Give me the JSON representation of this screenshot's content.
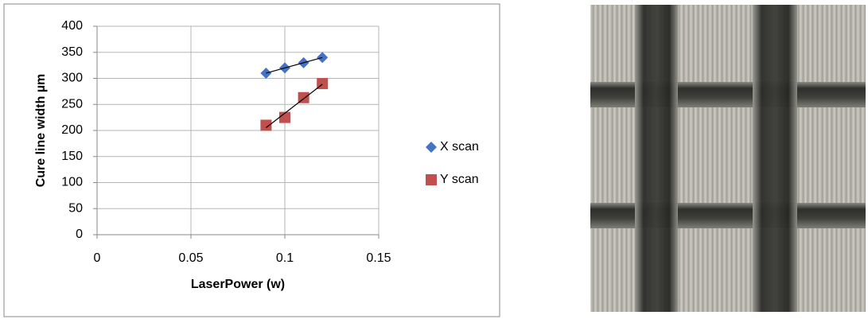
{
  "chart_data": {
    "type": "scatter",
    "x_label": "LaserPower (w)",
    "y_label": "Cure line width µm",
    "series": [
      {
        "name": "X scan",
        "color": "#4472c4",
        "marker": "diamond",
        "x": [
          0.09,
          0.1,
          0.11,
          0.12
        ],
        "values": [
          310,
          320,
          330,
          340
        ]
      },
      {
        "name": "Y scan",
        "color": "#c0504d",
        "marker": "square",
        "x": [
          0.09,
          0.1,
          0.11,
          0.12
        ],
        "values": [
          210,
          225,
          263,
          290
        ]
      }
    ],
    "trendline": "linear",
    "xlim": [
      0,
      0.15
    ],
    "xticks": [
      0,
      0.05,
      0.1,
      0.15
    ],
    "ylim": [
      0,
      400
    ],
    "yticks": [
      0,
      50,
      100,
      150,
      200,
      250,
      300,
      350,
      400
    ],
    "grid": true,
    "legend": "right"
  }
}
